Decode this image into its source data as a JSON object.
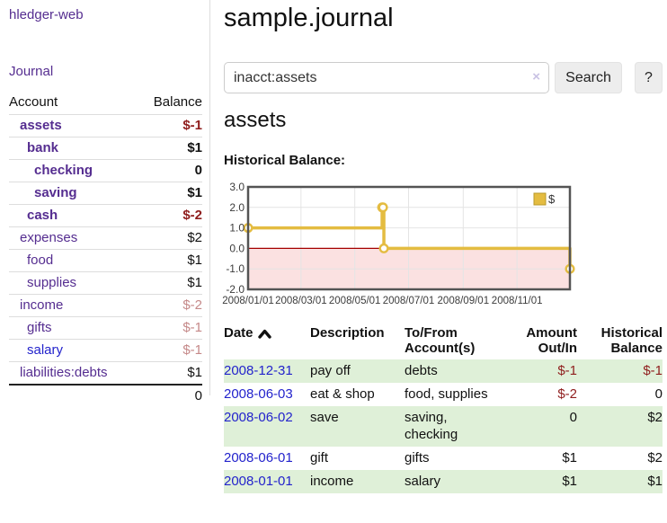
{
  "colors": {
    "purple-link": "#552d90",
    "blue-link": "#2323cc",
    "neg-strong": "#8f1d1d",
    "neg-muted": "#c58989",
    "row-green": "#dff0d8",
    "chart-line": "#e4bc41",
    "chart-negative-fill": "#fbe1e1",
    "chart-zero-line": "#a40000",
    "chart-border": "#545454",
    "chart-grid": "#e4e4e4"
  },
  "sidebar": {
    "brand": "hledger-web",
    "journal_link": "Journal",
    "account_header": "Account",
    "balance_header": "Balance",
    "accounts": [
      {
        "name": "assets",
        "indent": 0,
        "bold": true,
        "balance": "$-1",
        "balance_class": "neg"
      },
      {
        "name": "bank",
        "indent": 1,
        "bold": true,
        "balance": "$1",
        "balance_class": "pos"
      },
      {
        "name": "checking",
        "indent": 2,
        "bold": true,
        "balance": "0",
        "balance_class": "pos"
      },
      {
        "name": "saving",
        "indent": 2,
        "bold": true,
        "balance": "$1",
        "balance_class": "pos"
      },
      {
        "name": "cash",
        "indent": 1,
        "bold": true,
        "balance": "$-2",
        "balance_class": "neg"
      },
      {
        "name": "expenses",
        "indent": 0,
        "bold": false,
        "balance": "$2",
        "balance_class": "pos"
      },
      {
        "name": "food",
        "indent": 1,
        "bold": false,
        "balance": "$1",
        "balance_class": "pos"
      },
      {
        "name": "supplies",
        "indent": 1,
        "bold": false,
        "balance": "$1",
        "balance_class": "pos"
      },
      {
        "name": "income",
        "indent": 0,
        "bold": false,
        "balance": "$-2",
        "balance_class": "negmuted"
      },
      {
        "name": "gifts",
        "indent": 1,
        "bold": false,
        "balance": "$-1",
        "balance_class": "negmuted"
      },
      {
        "name": "salary",
        "indent": 1,
        "bold": false,
        "balance": "$-1",
        "balance_class": "negmuted",
        "link_class": "blue"
      },
      {
        "name": "liabilities:debts",
        "indent": 0,
        "bold": false,
        "balance": "$1",
        "balance_class": "pos"
      }
    ],
    "total": "0"
  },
  "main": {
    "title": "sample.journal",
    "search": {
      "value": "inacct:assets",
      "clear": "×",
      "button": "Search",
      "help": "?"
    },
    "account_title": "assets",
    "chart_heading": "Historical Balance:"
  },
  "chart_data": {
    "type": "line",
    "step": true,
    "title": "Historical Balance",
    "x_start": "2008-01-01",
    "x_end": "2008-12-31",
    "ylim": [
      -2,
      3
    ],
    "ytick_labels": [
      "3.0",
      "2.0",
      "1.0",
      "0.0",
      "-1.0",
      "-2.0"
    ],
    "yticks": [
      3,
      2,
      1,
      0,
      -1,
      -2
    ],
    "xtick_dates": [
      "2008-01-01",
      "2008-03-01",
      "2008-05-01",
      "2008-07-01",
      "2008-09-01",
      "2008-11-01"
    ],
    "xtick_labels": [
      "2008/01/01",
      "2008/03/01",
      "2008/05/01",
      "2008/07/01",
      "2008/09/01",
      "2008/11/01"
    ],
    "series": [
      {
        "name": "$",
        "points": [
          {
            "date": "2008-01-01",
            "value": 1
          },
          {
            "date": "2008-06-01",
            "value": 2
          },
          {
            "date": "2008-06-02",
            "value": 2
          },
          {
            "date": "2008-06-03",
            "value": 0
          },
          {
            "date": "2008-12-31",
            "value": -1
          }
        ]
      }
    ],
    "legend": {
      "label": "$",
      "position": "top-right"
    },
    "grid": true,
    "negative_region": true
  },
  "transactions": {
    "headers": {
      "date": "Date",
      "description": "Description",
      "account_line1": "To/From",
      "account_line2": "Account(s)",
      "amount_line1": "Amount",
      "amount_line2": "Out/In",
      "balance_line1": "Historical",
      "balance_line2": "Balance"
    },
    "rows": [
      {
        "date": "2008-12-31",
        "description": "pay off",
        "accounts": [
          "debts"
        ],
        "amount": "$-1",
        "amount_class": "neg",
        "balance": "$-1",
        "balance_class": "neg",
        "shaded": true
      },
      {
        "date": "2008-06-03",
        "description": "eat & shop",
        "accounts": [
          "food, supplies"
        ],
        "amount": "$-2",
        "amount_class": "neg",
        "balance": "0",
        "balance_class": "pos",
        "shaded": false
      },
      {
        "date": "2008-06-02",
        "description": "save",
        "accounts": [
          "saving,",
          "checking"
        ],
        "amount": "0",
        "amount_class": "pos",
        "balance": "$2",
        "balance_class": "pos",
        "shaded": true
      },
      {
        "date": "2008-06-01",
        "description": "gift",
        "accounts": [
          "gifts"
        ],
        "amount": "$1",
        "amount_class": "pos",
        "balance": "$2",
        "balance_class": "pos",
        "shaded": false
      },
      {
        "date": "2008-01-01",
        "description": "income",
        "accounts": [
          "salary"
        ],
        "amount": "$1",
        "amount_class": "pos",
        "balance": "$1",
        "balance_class": "pos",
        "shaded": true
      }
    ]
  }
}
